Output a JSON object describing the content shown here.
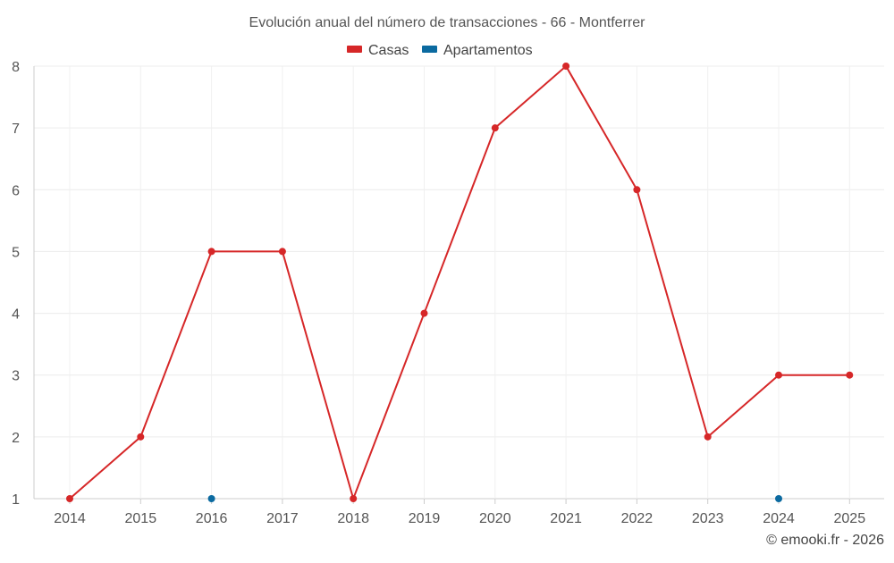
{
  "chart_data": {
    "type": "line",
    "title": "Evolución anual del número de transacciones - 66 - Montferrer",
    "x": [
      "2014",
      "2015",
      "2016",
      "2017",
      "2018",
      "2019",
      "2020",
      "2021",
      "2022",
      "2023",
      "2024",
      "2025"
    ],
    "ylim": [
      1,
      8
    ],
    "yticks": [
      1,
      2,
      3,
      4,
      5,
      6,
      7,
      8
    ],
    "grid": true,
    "legend_position": "top-center",
    "series": [
      {
        "name": "Casas",
        "color": "#d62728",
        "values": [
          1,
          2,
          5,
          5,
          1,
          4,
          7,
          8,
          6,
          2,
          3,
          3
        ]
      },
      {
        "name": "Apartamentos",
        "color": "#0b6aa0",
        "values": [
          null,
          null,
          1,
          null,
          null,
          null,
          null,
          null,
          null,
          null,
          1,
          null
        ]
      }
    ]
  },
  "footer": {
    "credit": "© emooki.fr - 2026"
  }
}
